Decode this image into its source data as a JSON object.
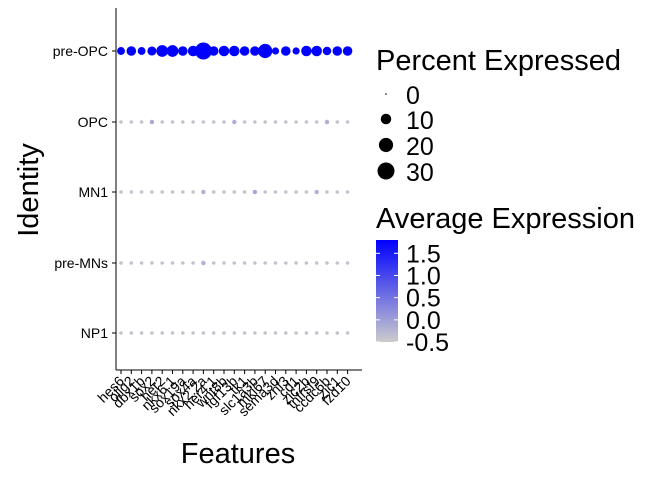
{
  "chart_data": {
    "type": "dotplot",
    "xlabel": "Features",
    "ylabel": "Identity",
    "features": [
      "hes6",
      "olig2",
      "dbx1b",
      "sox2",
      "her2",
      "nkx6.1",
      "sox19a",
      "sox4a",
      "nkx2.2a",
      "her4.1",
      "wnt8b",
      "fgf13b",
      "tk1",
      "slc1a3b",
      "mki67",
      "sema3d",
      "znf3",
      "cd1",
      "zic2b",
      "tnfrsf9",
      "ccdc6b",
      "zic1",
      "fzd10"
    ],
    "identities": [
      "pre-OPC",
      "OPC",
      "MN1",
      "pre-MNs",
      "NP1"
    ],
    "percent_expressed": [
      [
        5,
        8,
        5,
        7,
        13,
        13,
        8,
        10,
        30,
        8,
        10,
        10,
        8,
        8,
        20,
        4,
        8,
        4,
        10,
        10,
        6,
        8,
        8
      ],
      [
        0.5,
        0.5,
        0.5,
        1,
        0.5,
        0.5,
        0.5,
        0.5,
        0.5,
        0.5,
        0.5,
        1,
        0.5,
        0.5,
        0.5,
        0.5,
        0.5,
        0.5,
        0.5,
        0.5,
        1,
        0.5,
        0.5
      ],
      [
        0.5,
        0.5,
        0.5,
        0.5,
        0.5,
        0.5,
        0.5,
        0.5,
        1,
        0.5,
        0.5,
        0.5,
        0.5,
        1,
        0.5,
        0.5,
        0.5,
        0.5,
        0.5,
        1,
        0.5,
        0.5,
        0.5
      ],
      [
        0.5,
        0.5,
        0.5,
        0.5,
        0.5,
        0.5,
        0.5,
        0.5,
        1,
        0.5,
        0.5,
        0.5,
        0.5,
        0.5,
        0.5,
        0.5,
        0.5,
        0.5,
        0.5,
        0.5,
        0.5,
        0.5,
        0.5
      ],
      [
        0.5,
        0.5,
        0.5,
        0.5,
        0.5,
        0.5,
        0.5,
        0.5,
        0.5,
        0.5,
        0.5,
        0.5,
        0.5,
        0.5,
        0.5,
        0.5,
        0.5,
        0.5,
        0.5,
        0.5,
        0.5,
        0.5,
        0.5
      ]
    ],
    "average_expression": [
      [
        1.8,
        1.8,
        1.8,
        1.8,
        1.8,
        1.8,
        1.8,
        1.8,
        1.8,
        1.8,
        1.8,
        1.8,
        1.8,
        1.8,
        1.8,
        1.8,
        1.8,
        1.8,
        1.8,
        1.8,
        1.8,
        1.8,
        1.8
      ],
      [
        -0.4,
        -0.4,
        -0.4,
        -0.1,
        -0.4,
        -0.4,
        -0.4,
        -0.4,
        -0.4,
        -0.4,
        -0.4,
        -0.2,
        -0.4,
        -0.4,
        -0.4,
        -0.4,
        -0.4,
        -0.4,
        -0.4,
        -0.4,
        -0.2,
        -0.4,
        -0.4
      ],
      [
        -0.4,
        -0.4,
        -0.4,
        -0.4,
        -0.4,
        -0.4,
        -0.4,
        -0.4,
        -0.2,
        -0.4,
        -0.4,
        -0.4,
        -0.4,
        -0.1,
        -0.4,
        -0.4,
        -0.4,
        -0.4,
        -0.4,
        -0.2,
        -0.4,
        -0.4,
        -0.4
      ],
      [
        -0.4,
        -0.4,
        -0.4,
        -0.4,
        -0.4,
        -0.4,
        -0.4,
        -0.4,
        -0.2,
        -0.4,
        -0.4,
        -0.4,
        -0.4,
        -0.4,
        -0.4,
        -0.4,
        -0.4,
        -0.4,
        -0.4,
        -0.4,
        -0.4,
        -0.4,
        -0.4
      ],
      [
        -0.4,
        -0.4,
        -0.4,
        -0.4,
        -0.4,
        -0.4,
        -0.4,
        -0.4,
        -0.4,
        -0.4,
        -0.4,
        -0.4,
        -0.4,
        -0.4,
        -0.4,
        -0.4,
        -0.4,
        -0.4,
        -0.4,
        -0.4,
        -0.4,
        -0.4,
        -0.4
      ]
    ],
    "size_legend": {
      "title": "Percent Expressed",
      "breaks": [
        0,
        10,
        20,
        30
      ],
      "labels": [
        "0",
        "10",
        "20",
        "30"
      ]
    },
    "color_legend": {
      "title": "Average Expression",
      "breaks": [
        1.5,
        1.0,
        0.5,
        0.0,
        -0.5
      ],
      "labels": [
        "1.5",
        "1.0",
        "0.5",
        "0.0",
        "-0.5"
      ],
      "range": [
        -0.5,
        1.8
      ],
      "low_color": "#cccccc",
      "high_color": "#0000ff"
    },
    "percent_range": [
      0,
      30
    ],
    "grid": false,
    "legend_position": "right"
  }
}
